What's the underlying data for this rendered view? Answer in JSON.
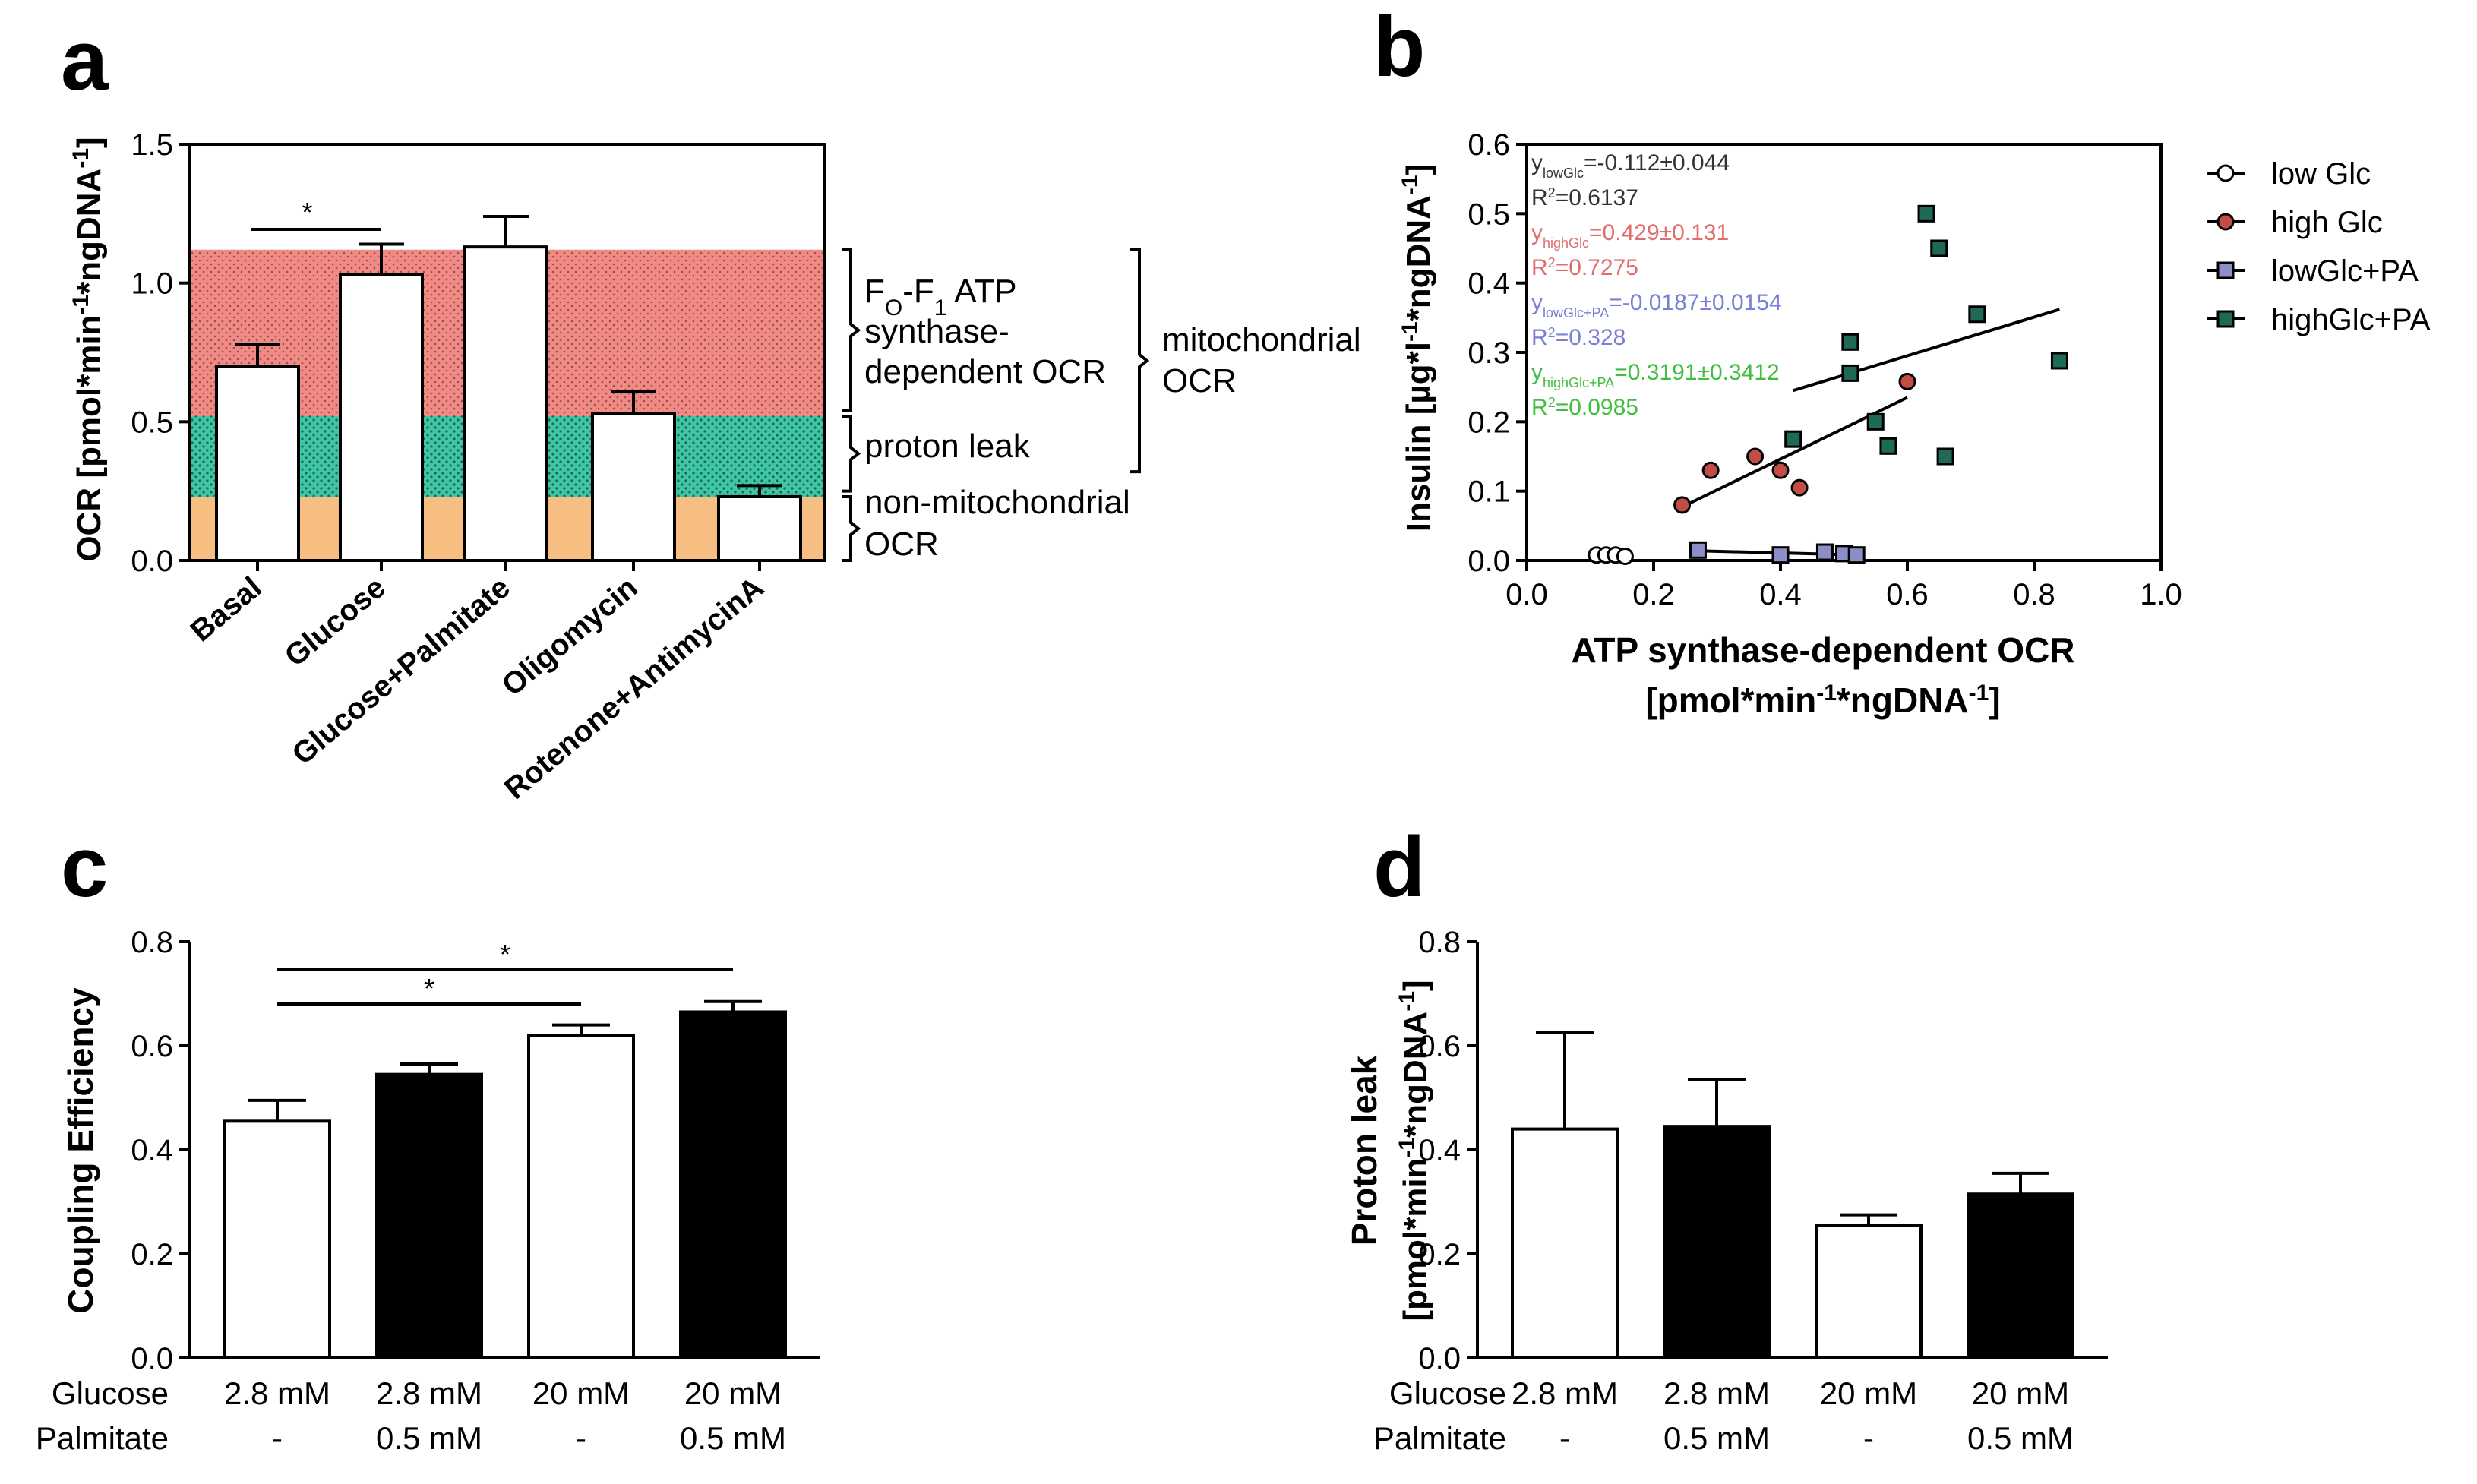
{
  "colors": {
    "mito_band": "#f18a85",
    "leak_band": "#3fc6a6",
    "nonmito_band": "#f7be82",
    "low_glc": "#ffffff",
    "high_glc": "#c14d45",
    "low_glc_pa": "#8b8ec7",
    "high_glc_pa": "#1f6a56",
    "eq_low_glc": "#333333",
    "eq_high_glc": "#e06d6d",
    "eq_low_glc_pa": "#7a7fd6",
    "eq_high_glc_pa": "#3fbf3f"
  },
  "chart_data": [
    {
      "panel": "a",
      "type": "bar",
      "ylabel": "OCR [pmol*min-1*ngDNA-1]",
      "ylim": [
        0,
        1.5
      ],
      "yticks": [
        "0.0",
        "0.5",
        "1.0",
        "1.5"
      ],
      "ytick_values": [
        0,
        0.5,
        1.0,
        1.5
      ],
      "categories": [
        "Basal",
        "Glucose",
        "Glucose+Palmitate",
        "Oligomycin",
        "Rotenone+AntimycinA"
      ],
      "values": [
        0.7,
        1.03,
        1.13,
        0.53,
        0.23
      ],
      "errors": [
        0.08,
        0.11,
        0.11,
        0.08,
        0.04
      ],
      "bands": [
        {
          "from": 0,
          "to": 0.23,
          "label": "non-mitochondrial OCR"
        },
        {
          "from": 0.23,
          "to": 0.52,
          "label": "proton leak"
        },
        {
          "from": 0.52,
          "to": 1.12,
          "label": "FO-F1 ATP synthase-dependent OCR"
        }
      ],
      "band_labels": {
        "atp_line1": "F",
        "atp_sub_o": "O",
        "atp_dash": "-F",
        "atp_sub_1": "1",
        "atp_rest": " ATP",
        "atp_line2": "synthase-",
        "atp_line3": "dependent OCR",
        "leak": "proton leak",
        "nonmito_line1": "non-mitochondrial",
        "nonmito_line2": "OCR",
        "mito_line1": "mitochondrial",
        "mito_line2": "OCR"
      },
      "significance": [
        {
          "from": "Basal",
          "to": "Glucose",
          "label": "*"
        }
      ]
    },
    {
      "panel": "b",
      "type": "scatter",
      "xlabel": "ATP synthase-dependent OCR",
      "xlabel2": "[pmol*min-1*ngDNA-1]",
      "ylabel": "Insulin [µg*l-1*ngDNA-1]",
      "xlim": [
        0.0,
        1.0
      ],
      "ylim": [
        0.0,
        0.6
      ],
      "xticks": [
        "0.0",
        "0.2",
        "0.4",
        "0.6",
        "0.8",
        "1.0"
      ],
      "xtick_values": [
        0,
        0.2,
        0.4,
        0.6,
        0.8,
        1.0
      ],
      "yticks": [
        "0.0",
        "0.1",
        "0.2",
        "0.3",
        "0.4",
        "0.5",
        "0.6"
      ],
      "ytick_values": [
        0,
        0.1,
        0.2,
        0.3,
        0.4,
        0.5,
        0.6
      ],
      "legend_position": "right",
      "series": [
        {
          "name": "low Glc",
          "marker": "circle",
          "points": [
            [
              0.11,
              0.008
            ],
            [
              0.125,
              0.008
            ],
            [
              0.14,
              0.008
            ],
            [
              0.155,
              0.006
            ]
          ],
          "fit": [
            [
              0.11,
              0.01
            ],
            [
              0.16,
              0.004
            ]
          ]
        },
        {
          "name": "high Glc",
          "marker": "circle",
          "points": [
            [
              0.245,
              0.08
            ],
            [
              0.29,
              0.13
            ],
            [
              0.36,
              0.15
            ],
            [
              0.4,
              0.13
            ],
            [
              0.43,
              0.105
            ],
            [
              0.6,
              0.258
            ]
          ],
          "fit": [
            [
              0.24,
              0.075
            ],
            [
              0.6,
              0.235
            ]
          ]
        },
        {
          "name": "lowGlc+PA",
          "marker": "square",
          "points": [
            [
              0.27,
              0.015
            ],
            [
              0.4,
              0.008
            ],
            [
              0.47,
              0.012
            ],
            [
              0.5,
              0.01
            ],
            [
              0.52,
              0.008
            ]
          ],
          "fit": [
            [
              0.27,
              0.014
            ],
            [
              0.52,
              0.008
            ]
          ]
        },
        {
          "name": "highGlc+PA",
          "marker": "square",
          "points": [
            [
              0.63,
              0.5
            ],
            [
              0.65,
              0.45
            ],
            [
              0.71,
              0.355
            ],
            [
              0.84,
              0.288
            ],
            [
              0.51,
              0.315
            ],
            [
              0.51,
              0.27
            ],
            [
              0.55,
              0.2
            ],
            [
              0.57,
              0.165
            ],
            [
              0.66,
              0.15
            ],
            [
              0.42,
              0.175
            ]
          ],
          "fit": [
            [
              0.42,
              0.245
            ],
            [
              0.84,
              0.362
            ]
          ]
        }
      ],
      "annotations": [
        {
          "series": "low Glc",
          "sub": "lowGlc",
          "eq": "=-0.112±0.044",
          "r2": "=0.6137"
        },
        {
          "series": "high Glc",
          "sub": "highGlc",
          "eq": "=0.429±0.131",
          "r2": "=0.7275"
        },
        {
          "series": "lowGlc+PA",
          "sub": "lowGlc+PA",
          "eq": "=-0.0187±0.0154",
          "r2": "=0.328"
        },
        {
          "series": "highGlc+PA",
          "sub": "highGlc+PA",
          "eq": "=0.3191±0.3412",
          "r2": "=0.0985"
        }
      ]
    },
    {
      "panel": "c",
      "type": "bar",
      "ylabel": "Coupling Efficiency",
      "ylim": [
        0,
        0.8
      ],
      "yticks": [
        "0.0",
        "0.2",
        "0.4",
        "0.6",
        "0.8"
      ],
      "ytick_values": [
        0,
        0.2,
        0.4,
        0.6,
        0.8
      ],
      "values": [
        0.455,
        0.545,
        0.62,
        0.665
      ],
      "errors": [
        0.04,
        0.02,
        0.02,
        0.02
      ],
      "fills": [
        "white",
        "black",
        "white",
        "black"
      ],
      "row_labels": [
        "Glucose",
        "Palmitate"
      ],
      "glucose": [
        "2.8 mM",
        "2.8 mM",
        "20 mM",
        "20 mM"
      ],
      "palmitate": [
        "-",
        "0.5 mM",
        "-",
        "0.5 mM"
      ],
      "significance": [
        {
          "from": 0,
          "to": 2,
          "label": "*"
        },
        {
          "from": 0,
          "to": 3,
          "label": "*"
        }
      ]
    },
    {
      "panel": "d",
      "type": "bar",
      "ylabel": "Proton leak",
      "ylabel2": "[pmol*min-1*ngDNA-1]",
      "ylim": [
        0,
        0.8
      ],
      "yticks": [
        "0.0",
        "0.2",
        "0.4",
        "0.6",
        "0.8"
      ],
      "ytick_values": [
        0,
        0.2,
        0.4,
        0.6,
        0.8
      ],
      "values": [
        0.44,
        0.445,
        0.255,
        0.315
      ],
      "errors": [
        0.185,
        0.09,
        0.02,
        0.04
      ],
      "fills": [
        "white",
        "black",
        "white",
        "black"
      ],
      "row_labels": [
        "Glucose",
        "Palmitate"
      ],
      "glucose": [
        "2.8 mM",
        "2.8 mM",
        "20 mM",
        "20 mM"
      ],
      "palmitate": [
        "-",
        "0.5 mM",
        "-",
        "0.5 mM"
      ]
    }
  ],
  "panel_letters": [
    "a",
    "b",
    "c",
    "d"
  ]
}
